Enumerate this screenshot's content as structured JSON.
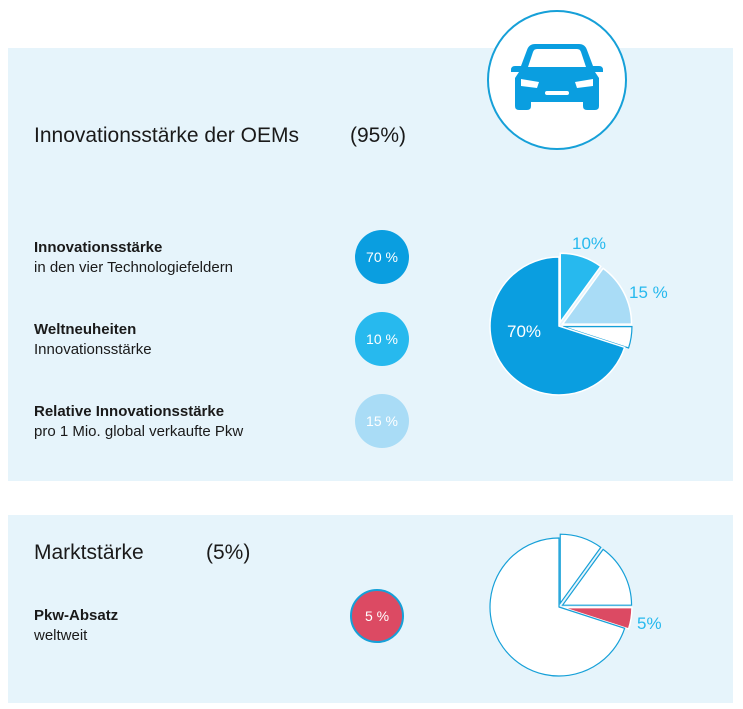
{
  "colors": {
    "blue_dark": "#0a9ee0",
    "blue_mid": "#27b9ee",
    "blue_light": "#a9dcf6",
    "red": "#dc4a63",
    "outline": "#16a0d8",
    "panel_bg": "#e6f4fb"
  },
  "icons": {
    "car": "car-front-icon"
  },
  "innovation": {
    "title": "Innovationsstärke der OEMs",
    "weight": "(95%)",
    "items": [
      {
        "title": "Innovationsstärke",
        "subtitle": "in den vier Technologiefeldern",
        "value_label": "70 %"
      },
      {
        "title": "Weltneuheiten",
        "subtitle": "Innovationsstärke",
        "value_label": "10 %"
      },
      {
        "title": "Relative Innovationsstärke",
        "subtitle": "pro 1 Mio. global verkaufte Pkw",
        "value_label": "15 %"
      }
    ]
  },
  "market": {
    "title": "Marktstärke",
    "weight": "(5%)",
    "items": [
      {
        "title": "Pkw-Absatz",
        "subtitle": "weltweit",
        "value_label": "5 %"
      }
    ]
  },
  "chart_data": [
    {
      "type": "pie",
      "title": "",
      "slices": [
        {
          "value": 70,
          "label": "70%",
          "color": "#0a9ee0",
          "style": "filled"
        },
        {
          "value": 10,
          "label": "10%",
          "color": "#27b9ee",
          "style": "filled"
        },
        {
          "value": 15,
          "label": "15 %",
          "color": "#a9dcf6",
          "style": "filled"
        },
        {
          "value": 5,
          "label": "",
          "color": "#ffffff",
          "style": "outline"
        }
      ]
    },
    {
      "type": "pie",
      "title": "",
      "slices": [
        {
          "value": 70,
          "label": "",
          "color": "#ffffff",
          "style": "outline"
        },
        {
          "value": 10,
          "label": "",
          "color": "#ffffff",
          "style": "outline"
        },
        {
          "value": 15,
          "label": "",
          "color": "#ffffff",
          "style": "outline"
        },
        {
          "value": 5,
          "label": "5%",
          "color": "#dc4a63",
          "style": "filled"
        }
      ]
    }
  ]
}
